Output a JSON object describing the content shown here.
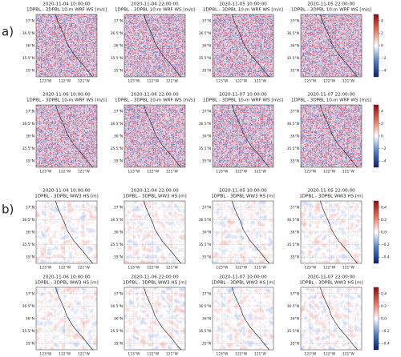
{
  "figure": {
    "map": {
      "xlim": [
        -123.5,
        -120.3
      ],
      "ylim": [
        34.75,
        37.25
      ],
      "xticks": [
        {
          "value": -123,
          "label": "123°W"
        },
        {
          "value": -122,
          "label": "122°W"
        },
        {
          "value": -121,
          "label": "121°W"
        }
      ],
      "yticks": [
        {
          "value": 37,
          "label": "37°N"
        },
        {
          "value": 36.5,
          "label": "36.5°N"
        },
        {
          "value": 36,
          "label": "36°N"
        },
        {
          "value": 35.5,
          "label": "35.5°N"
        },
        {
          "value": 35,
          "label": "35°N"
        }
      ]
    },
    "panels": [
      {
        "label": "a)",
        "clim": [
          -5,
          5
        ],
        "cticks": [
          {
            "value": 4,
            "label": "4"
          },
          {
            "value": 2,
            "label": "2"
          },
          {
            "value": 0,
            "label": "0"
          },
          {
            "value": -2,
            "label": "−2"
          },
          {
            "value": -4,
            "label": "−4"
          }
        ],
        "subplots": [
          {
            "date": "2020-11-04 10:00:00",
            "title": "1DPBL - 3DPBL 10-m WRF WS [m/s]"
          },
          {
            "date": "2020-11-04 22:00:00",
            "title": "1DPBL - 3DPBL 10-m WRF WS [m/s]"
          },
          {
            "date": "2020-11-05 10:00:00",
            "title": "1DPBL - 3DPBL 10-m WRF WS [m/s]"
          },
          {
            "date": "2020-11-05 22:00:00",
            "title": "1DPBL - 3DPBL 10-m WRF WS [m/s]"
          },
          {
            "date": "2020-11-06 10:00:00",
            "title": "1DPBL - 3DPBL 10-m WRF WS [m/s]"
          },
          {
            "date": "2020-11-06 22:00:00",
            "title": "1DPBL - 3DPBL 10-m WRF WS [m/s]"
          },
          {
            "date": "2020-11-07 10:00:00",
            "title": "1DPBL - 3DPBL 10-m WRF WS [m/s]"
          },
          {
            "date": "2020-11-07 22:00:00",
            "title": "1DPBL - 3DPBL 10-m WRF WS [m/s]"
          }
        ]
      },
      {
        "label": "b)",
        "clim": [
          -0.5,
          0.5
        ],
        "cticks": [
          {
            "value": 0.4,
            "label": "0.4"
          },
          {
            "value": 0.2,
            "label": "0.2"
          },
          {
            "value": 0,
            "label": "0.0"
          },
          {
            "value": -0.2,
            "label": "−0.2"
          },
          {
            "value": -0.4,
            "label": "−0.4"
          }
        ],
        "subplots": [
          {
            "date": "2020-11-04 10:00:00",
            "title": "1DPBL - 3DPBL WW3 HS [m]"
          },
          {
            "date": "2020-11-04 22:00:00",
            "title": "1DPBL - 3DPBL WW3 HS [m]"
          },
          {
            "date": "2020-11-05 10:00:00",
            "title": "1DPBL - 3DPBL WW3 HS [m]"
          },
          {
            "date": "2020-11-05 22:00:00",
            "title": "1DPBL - 3DPBL WW3 HS [m]"
          },
          {
            "date": "2020-11-06 10:00:00",
            "title": "1DPBL - 3DPBL WW3 HS [m]"
          },
          {
            "date": "2020-11-06 22:00:00",
            "title": "1DPBL - 3DPBL WW3 HS [m]"
          },
          {
            "date": "2020-11-07 10:00:00",
            "title": "1DPBL - 3DPBL WW3 HS [m]"
          },
          {
            "date": "2020-11-07 22:00:00",
            "title": "1DPBL - 3DPBL WW3 HS [m]"
          }
        ]
      }
    ]
  }
}
